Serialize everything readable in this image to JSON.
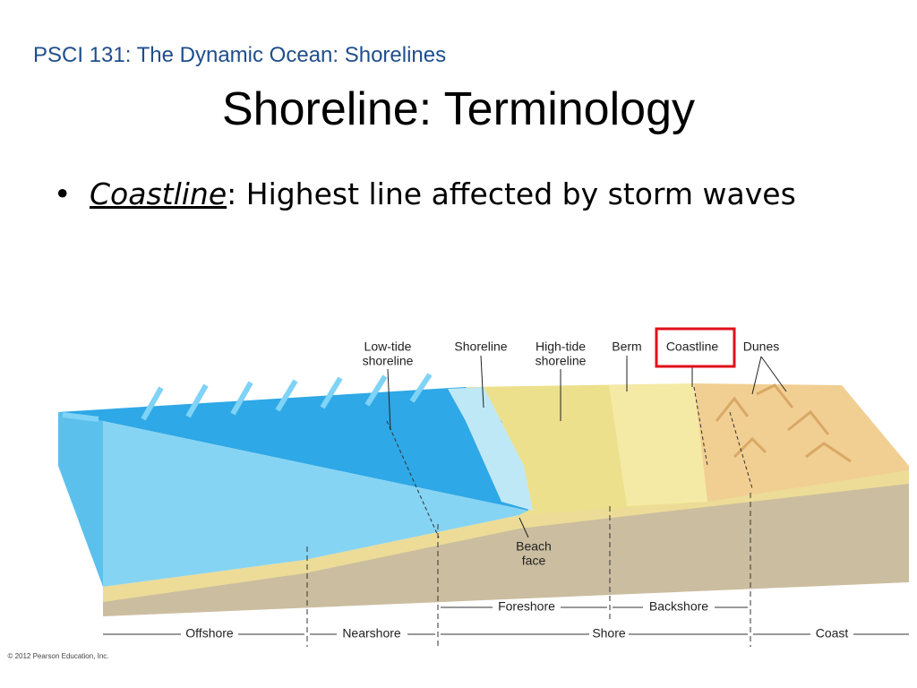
{
  "header": {
    "course": "PSCI 131: The Dynamic Ocean: Shorelines",
    "title": "Shoreline: Terminology"
  },
  "bullet": {
    "term": "Coastline",
    "text": ": Highest line affected by storm waves"
  },
  "diagram": {
    "labels": [
      {
        "lines": [
          "Low-tide",
          "shoreline"
        ]
      },
      {
        "lines": [
          "Shoreline"
        ]
      },
      {
        "lines": [
          "High-tide",
          "shoreline"
        ]
      },
      {
        "lines": [
          "Berm"
        ]
      },
      {
        "lines": [
          "Coastline"
        ],
        "highlighted": true
      },
      {
        "lines": [
          "Dunes"
        ]
      },
      {
        "lines": [
          "Beach",
          "face"
        ]
      }
    ],
    "zones": [
      "Foreshore",
      "Backshore",
      "Offshore",
      "Nearshore",
      "Shore",
      "Coast"
    ],
    "credit": "© 2012 Pearson Education, Inc."
  }
}
